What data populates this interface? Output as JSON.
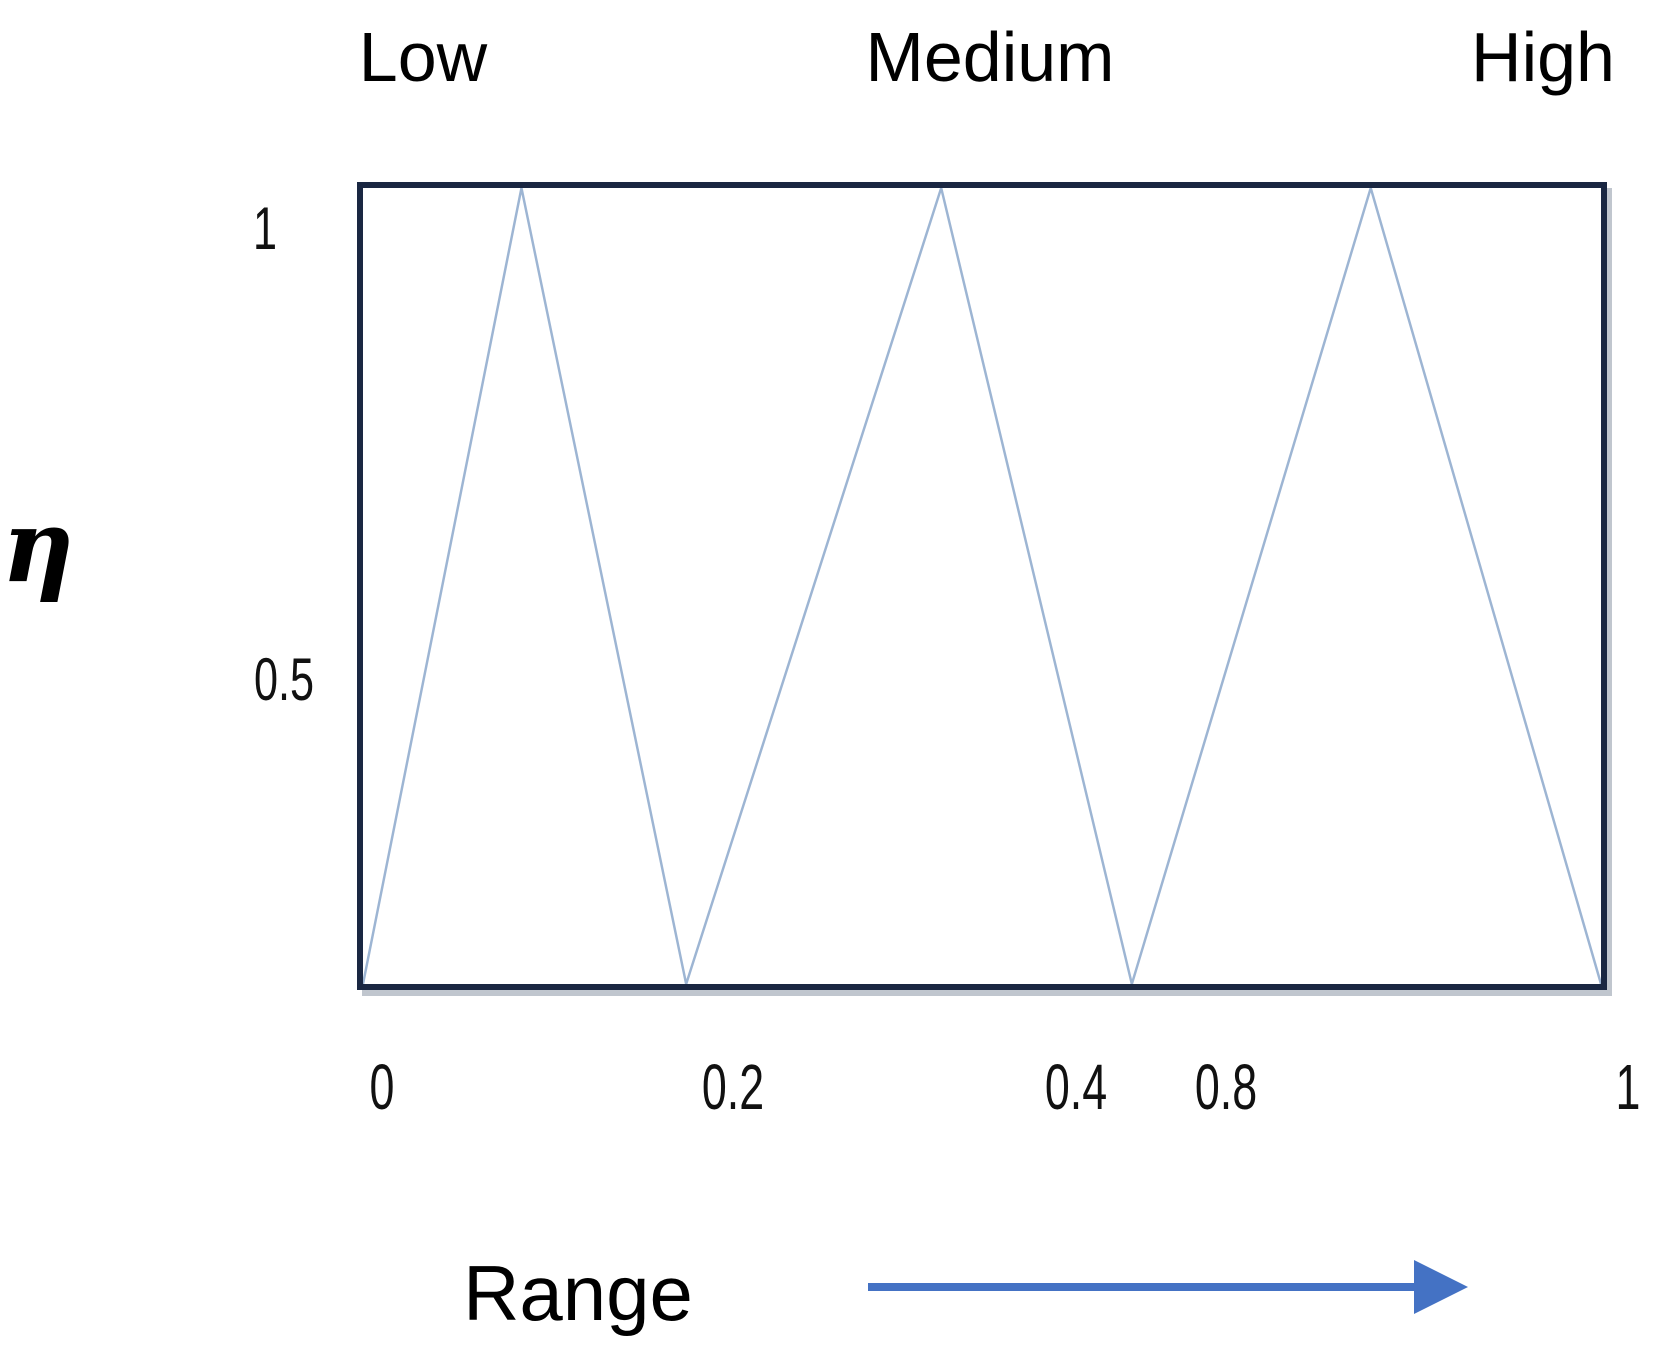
{
  "chart_data": {
    "type": "line",
    "title": "",
    "description": "Three triangular fuzzy membership functions drawn inside a rectangular frame",
    "set_labels": [
      "Low",
      "Medium",
      "High"
    ],
    "series": [
      {
        "name": "Low",
        "points": [
          [
            0.0,
            0
          ],
          [
            0.128,
            1
          ],
          [
            0.261,
            0
          ]
        ]
      },
      {
        "name": "Medium",
        "points": [
          [
            0.261,
            0
          ],
          [
            0.467,
            1
          ],
          [
            0.621,
            0
          ]
        ]
      },
      {
        "name": "High",
        "points": [
          [
            0.621,
            0
          ],
          [
            0.814,
            1
          ],
          [
            1.0,
            0
          ]
        ]
      }
    ],
    "xlabel": "Range",
    "ylabel": "η",
    "x_tick_labels": [
      "0",
      "0.2",
      "0.4",
      "0.8",
      "1"
    ],
    "y_tick_labels": [
      "1",
      "0.5"
    ],
    "xlim": [
      0,
      1
    ],
    "ylim": [
      0,
      1
    ],
    "grid": false,
    "legend": "none"
  },
  "colors": {
    "border": "#1a2742",
    "line": "#9db5d3",
    "arrow": "#4472c4",
    "text": "#000000"
  }
}
